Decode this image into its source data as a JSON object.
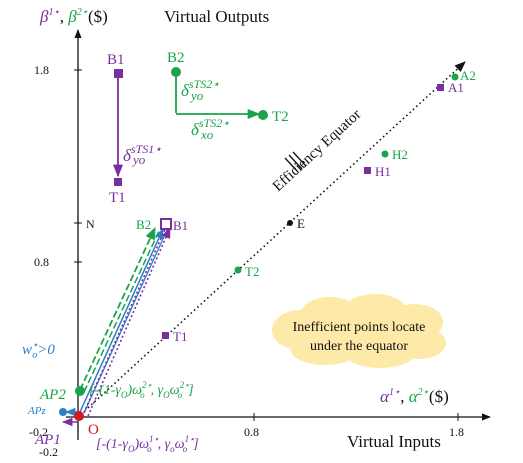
{
  "colors": {
    "green": "#1aa34a",
    "purple": "#7a2f9e",
    "blue": "#2a7fc7",
    "red": "#d11a1a",
    "cloud": "#fde9a8",
    "black": "#111111"
  },
  "axes": {
    "y_title_greek": "β",
    "y_title_super_1": "1⋆",
    "y_title_comma": ", ",
    "y_title_greek_2": "β",
    "y_title_super_2": "2⋆",
    "y_title_unit": "($)",
    "y_title_main": "Virtual Outputs",
    "x_title_greek": "α",
    "x_title_super_1": "1⋆",
    "x_title_comma": ", ",
    "x_title_greek_2": "α",
    "x_title_super_2": "2⋆",
    "x_title_unit": "($)",
    "x_title_main": "Virtual Inputs",
    "y_ticks": [
      "1.8",
      "0.8",
      "-0.2"
    ],
    "x_ticks": [
      "-0.2",
      "0.8",
      "1.8"
    ],
    "origin_label": "O",
    "n_label": "N"
  },
  "points": {
    "A1": "A1",
    "A2": "A2",
    "H1": "H1",
    "H2": "H2",
    "E": "E",
    "T1": "T1",
    "T2": "T2",
    "B1_top": "B1",
    "T1_top": "T1",
    "B2_top": "B2",
    "T2_top": "T2",
    "B1_mid": "B1",
    "B2_mid": "B2",
    "AP1": "AP1",
    "AP2": "AP2",
    "APz": "APz"
  },
  "annotations": {
    "equator": "Efficiency Equator",
    "delta_yo_sts2_base": "δ",
    "delta_yo_sts2_sup": "sTS2⋆",
    "delta_yo_sts2_sub": "yo",
    "delta_xo_sts2_base": "δ",
    "delta_xo_sts2_sup": "sTS2⋆",
    "delta_xo_sts2_sub": "xo",
    "delta_yo_sts1_base": "δ",
    "delta_yo_sts1_sup": "sTS1⋆",
    "delta_yo_sts1_sub": "yo",
    "w_condition": "w",
    "w_condition_sup": "⋆",
    "w_condition_sub": "o",
    "w_condition_rest": ">0",
    "interval_green": "[-(1-γ",
    "interval_green_2": ")ω",
    "interval_green_3": ", γ",
    "interval_green_4": "ω",
    "interval_green_end": "]",
    "interval_green_sub_o": "O",
    "interval_green_sub": "o",
    "interval_green_sup": "2⋆",
    "interval_purple": "[-(1-γ",
    "interval_purple_2": ")ω",
    "interval_purple_3": ", γ",
    "interval_purple_4": "ω",
    "interval_purple_end": "]",
    "interval_purple_sub": "o",
    "interval_purple_sup": "1⋆",
    "cloud_line1": "Inefficient points locate",
    "cloud_line2": "under the equator"
  }
}
